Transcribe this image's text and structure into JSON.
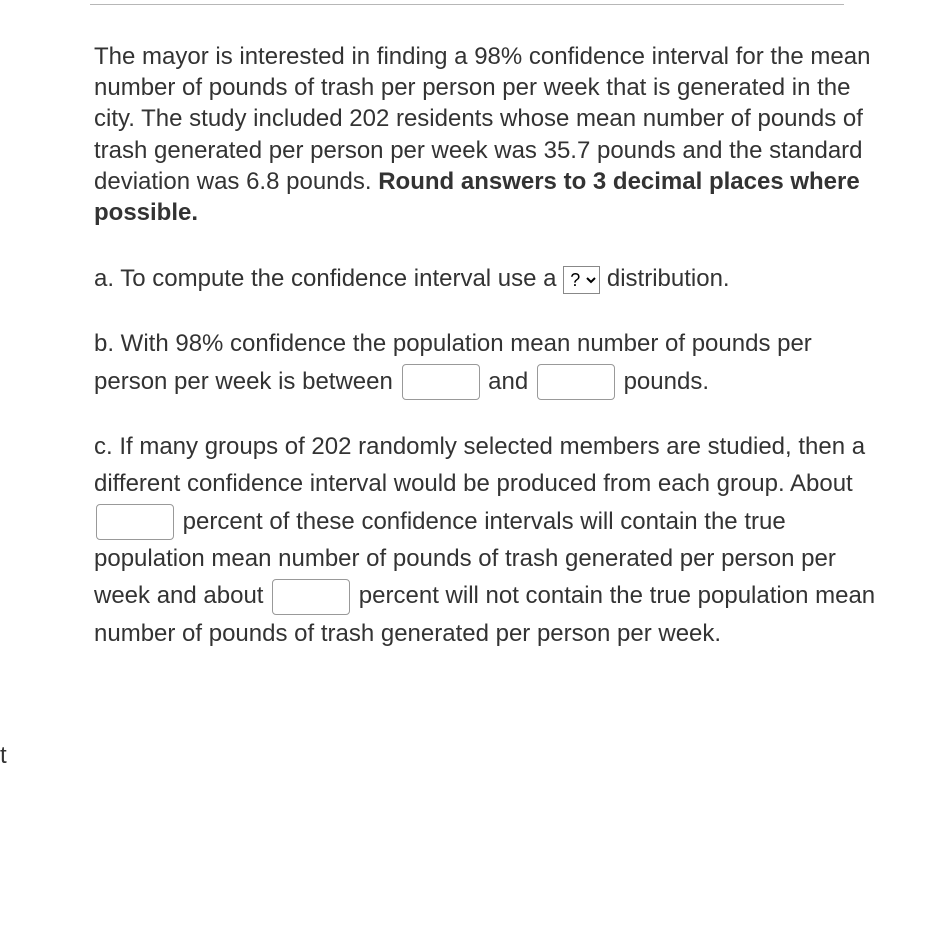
{
  "sidebar": {
    "t_label": "t"
  },
  "intro": {
    "text": "The mayor is interested in finding a 98% confidence interval for the mean number of pounds of trash per person per week that is generated in the city. The study included 202 residents whose mean number of pounds of trash generated per person per week was 35.7 pounds and the standard deviation was 6.8 pounds. ",
    "bold_text": "Round answers to 3 decimal places where possible."
  },
  "part_a": {
    "prefix": "a. To compute the confidence interval use a ",
    "select_value": "?",
    "suffix": " distribution."
  },
  "part_b": {
    "seg1": "b. With 98% confidence the population mean number of pounds per person per week is between ",
    "seg2": " and ",
    "seg3": " pounds.",
    "input1": "",
    "input2": ""
  },
  "part_c": {
    "seg1": "c. If many groups of 202 randomly selected members are studied, then a different confidence interval would be produced from each group. About ",
    "seg2": " percent of these confidence intervals will contain the true population mean number of pounds of trash generated per person per week and about ",
    "seg3": " percent will not contain the true population mean number of pounds of trash generated per person per week.",
    "input1": "",
    "input2": ""
  }
}
